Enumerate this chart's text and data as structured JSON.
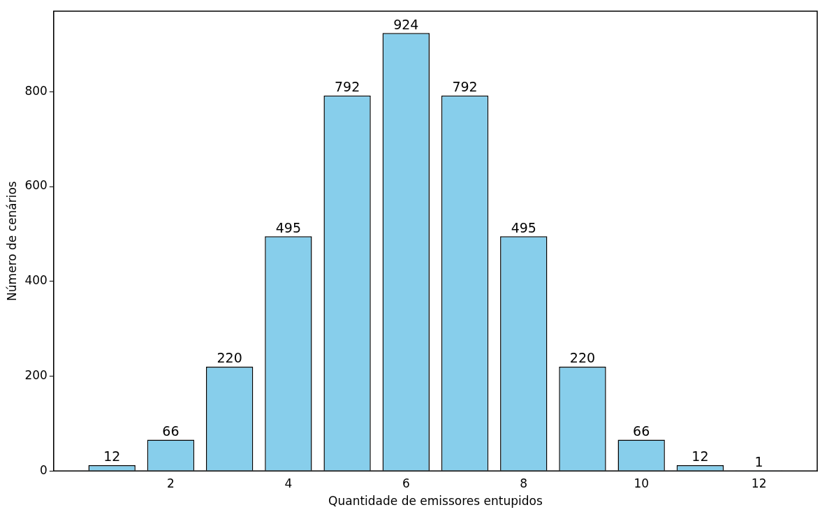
{
  "chart_data": {
    "type": "bar",
    "xlabel": "Quantidade de emissores entupidos",
    "ylabel": "Número de cenários",
    "x": [
      1,
      2,
      3,
      4,
      5,
      6,
      7,
      8,
      9,
      10,
      11,
      12
    ],
    "values": [
      12,
      66,
      220,
      495,
      792,
      924,
      792,
      495,
      220,
      66,
      12,
      1
    ],
    "color": "#87ceeb",
    "xlim": [
      0.01,
      12.99
    ],
    "xticks": [
      2,
      4,
      6,
      8,
      10,
      12
    ],
    "ylim": [
      0,
      970
    ],
    "yticks": [
      0,
      200,
      400,
      600,
      800
    ],
    "grid": false,
    "legend": false,
    "data_labels": true
  }
}
